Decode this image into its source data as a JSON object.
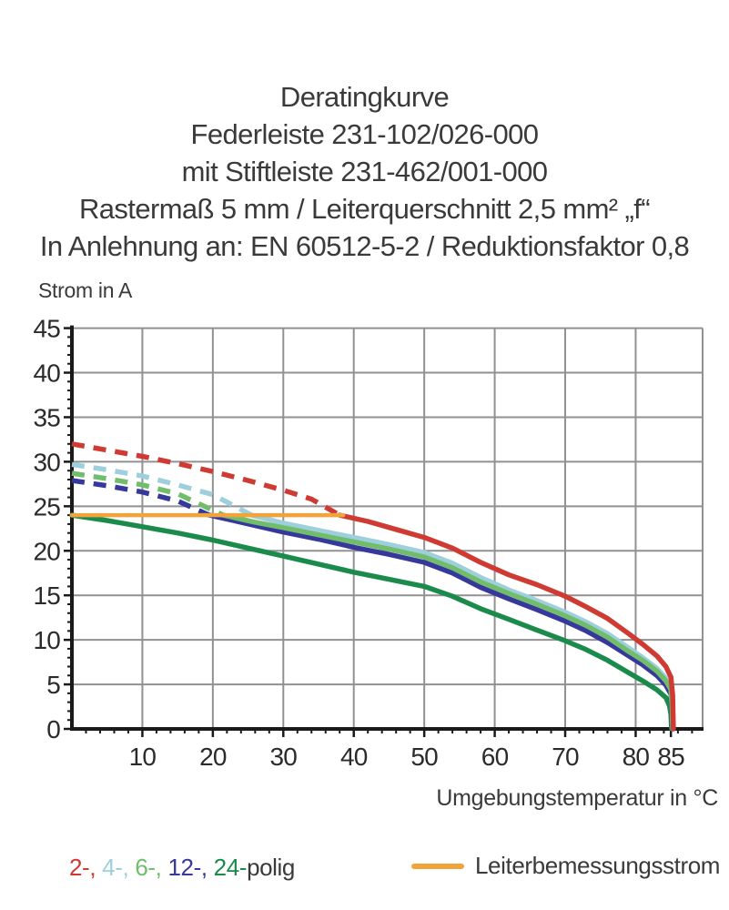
{
  "chart_data": {
    "type": "line",
    "title_lines": [
      "Deratingkurve",
      "Federleiste 231-102/026-000",
      "mit Stiftleiste 231-462/001-000",
      "Rastermaß 5 mm / Leiterquerschnitt 2,5 mm² „f“",
      "In Anlehnung an: EN 60512-5-2 / Reduktionsfaktor 0,8"
    ],
    "xlabel": "Umgebungstemperatur in °C",
    "ylabel": "Strom in A",
    "xlim": [
      0,
      89.5
    ],
    "ylim": [
      0,
      45
    ],
    "x_major_ticks": [
      10,
      20,
      30,
      40,
      50,
      60,
      70,
      80,
      85
    ],
    "x_minor_step": 2,
    "x_minor_max": 88,
    "y_major_ticks": [
      0,
      5,
      10,
      15,
      20,
      25,
      30,
      35,
      40,
      45
    ],
    "y_minor_step": 1,
    "grid_x": [
      10,
      20,
      30,
      40,
      50,
      60,
      70,
      80,
      89.5
    ],
    "grid_y": [
      5,
      10,
      15,
      20,
      25,
      30,
      35,
      40,
      45
    ],
    "grid_color": "#919191",
    "axis_color": "#1a1a1a",
    "rated_current_A": 24,
    "series": [
      {
        "name": "24-polig",
        "color": "#1b8b4b",
        "solid_points": [
          [
            0,
            24
          ],
          [
            5,
            23.4
          ],
          [
            10,
            22.7
          ],
          [
            15,
            22.0
          ],
          [
            20,
            21.2
          ],
          [
            25,
            20.3
          ],
          [
            30,
            19.4
          ],
          [
            35,
            18.5
          ],
          [
            40,
            17.6
          ],
          [
            45,
            16.8
          ],
          [
            50,
            16.0
          ],
          [
            54,
            14.9
          ],
          [
            58,
            13.5
          ],
          [
            62,
            12.3
          ],
          [
            66,
            11.1
          ],
          [
            70,
            9.9
          ],
          [
            73,
            8.9
          ],
          [
            76,
            7.7
          ],
          [
            79,
            6.3
          ],
          [
            81,
            5.4
          ],
          [
            83,
            4.4
          ],
          [
            84.3,
            3.5
          ],
          [
            84.8,
            2.6
          ],
          [
            85.0,
            1.6
          ],
          [
            85.1,
            0
          ]
        ]
      },
      {
        "name": "12-polig",
        "color": "#36389b",
        "dashed_points": [
          [
            0,
            27.9
          ],
          [
            5,
            27.3
          ],
          [
            10,
            26.6
          ],
          [
            15,
            25.6
          ],
          [
            19.5,
            24
          ]
        ],
        "solid_points": [
          [
            19.5,
            24
          ],
          [
            24,
            23.2
          ],
          [
            30,
            22.1
          ],
          [
            35,
            21.3
          ],
          [
            40,
            20.4
          ],
          [
            45,
            19.6
          ],
          [
            50,
            18.7
          ],
          [
            54,
            17.5
          ],
          [
            58,
            15.9
          ],
          [
            62,
            14.6
          ],
          [
            66,
            13.4
          ],
          [
            70,
            12.1
          ],
          [
            73,
            11.0
          ],
          [
            76,
            9.7
          ],
          [
            79,
            8.2
          ],
          [
            81,
            7.2
          ],
          [
            83,
            6.0
          ],
          [
            84.3,
            4.9
          ],
          [
            85.0,
            3.9
          ],
          [
            85.1,
            2.4
          ],
          [
            85.2,
            0
          ]
        ]
      },
      {
        "name": "4-polig",
        "color": "#9ecfdd",
        "dashed_points": [
          [
            0,
            29.7
          ],
          [
            5,
            29.1
          ],
          [
            10,
            28.4
          ],
          [
            15,
            27.4
          ],
          [
            20,
            26.3
          ],
          [
            25.5,
            24
          ]
        ],
        "solid_points": [
          [
            25.5,
            24
          ],
          [
            30,
            23.1
          ],
          [
            35,
            22.3
          ],
          [
            40,
            21.5
          ],
          [
            45,
            20.7
          ],
          [
            50,
            19.8
          ],
          [
            54,
            18.6
          ],
          [
            58,
            17.0
          ],
          [
            62,
            15.6
          ],
          [
            66,
            14.4
          ],
          [
            70,
            13.1
          ],
          [
            73,
            12.0
          ],
          [
            76,
            10.7
          ],
          [
            79,
            9.1
          ],
          [
            81,
            8.0
          ],
          [
            83,
            6.8
          ],
          [
            84.3,
            5.7
          ],
          [
            85.0,
            4.7
          ],
          [
            85.2,
            2.9
          ],
          [
            85.3,
            0
          ]
        ]
      },
      {
        "name": "6-polig",
        "color": "#72bd6b",
        "dashed_points": [
          [
            0,
            28.7
          ],
          [
            5,
            28.1
          ],
          [
            10,
            27.4
          ],
          [
            15,
            26.4
          ],
          [
            21.5,
            24
          ]
        ],
        "solid_points": [
          [
            21.5,
            24
          ],
          [
            26,
            23.2
          ],
          [
            30,
            22.6
          ],
          [
            35,
            21.8
          ],
          [
            40,
            21.0
          ],
          [
            45,
            20.2
          ],
          [
            50,
            19.3
          ],
          [
            54,
            18.1
          ],
          [
            58,
            16.5
          ],
          [
            62,
            15.2
          ],
          [
            66,
            14.0
          ],
          [
            70,
            12.7
          ],
          [
            73,
            11.6
          ],
          [
            76,
            10.3
          ],
          [
            79,
            8.7
          ],
          [
            81,
            7.7
          ],
          [
            83,
            6.5
          ],
          [
            84.3,
            5.4
          ],
          [
            85.0,
            4.4
          ],
          [
            85.15,
            2.7
          ],
          [
            85.25,
            0
          ]
        ]
      },
      {
        "name": "2-polig",
        "color": "#cf3a33",
        "dashed_points": [
          [
            0,
            32
          ],
          [
            5,
            31.3
          ],
          [
            10,
            30.6
          ],
          [
            15,
            29.8
          ],
          [
            20,
            28.9
          ],
          [
            25,
            27.9
          ],
          [
            30,
            26.8
          ],
          [
            34,
            25.8
          ],
          [
            38,
            24
          ]
        ],
        "solid_points": [
          [
            38,
            24
          ],
          [
            42,
            23.3
          ],
          [
            46,
            22.4
          ],
          [
            50,
            21.5
          ],
          [
            54,
            20.3
          ],
          [
            58,
            18.7
          ],
          [
            62,
            17.3
          ],
          [
            66,
            16.2
          ],
          [
            70,
            14.9
          ],
          [
            73,
            13.7
          ],
          [
            76,
            12.4
          ],
          [
            79,
            10.7
          ],
          [
            81,
            9.5
          ],
          [
            83,
            8.2
          ],
          [
            84.3,
            7.0
          ],
          [
            85.0,
            5.8
          ],
          [
            85.25,
            3.8
          ],
          [
            85.35,
            0
          ]
        ]
      },
      {
        "name": "Leiterbemessungsstrom",
        "color": "#f1a33c",
        "solid_points": [
          [
            0,
            24
          ],
          [
            38.5,
            24
          ]
        ]
      }
    ]
  },
  "legend": {
    "poles": [
      {
        "label": "2-,",
        "color": "#cf3a33"
      },
      {
        "label": "4-,",
        "color": "#9ecfdd"
      },
      {
        "label": "6-,",
        "color": "#72bd6b"
      },
      {
        "label": "12-,",
        "color": "#36389b"
      },
      {
        "label": "24-",
        "color": "#1b8b4b"
      }
    ],
    "poles_suffix": "polig",
    "rated_label": "Leiterbemessungsstrom",
    "rated_color": "#f1a33c"
  }
}
